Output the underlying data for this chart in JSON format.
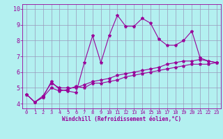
{
  "xlabel": "Windchill (Refroidissement éolien,°C)",
  "background_color": "#b3f0f0",
  "line_color": "#990099",
  "grid_color": "#9999bb",
  "x_ticks": [
    0,
    1,
    2,
    3,
    4,
    5,
    6,
    7,
    8,
    9,
    10,
    11,
    12,
    13,
    14,
    15,
    16,
    17,
    18,
    19,
    20,
    21,
    22,
    23
  ],
  "y_ticks": [
    4,
    5,
    6,
    7,
    8,
    9,
    10
  ],
  "xlim": [
    -0.5,
    23.5
  ],
  "ylim": [
    3.7,
    10.3
  ],
  "series1_x": [
    0,
    1,
    2,
    3,
    4,
    5,
    6,
    7,
    8,
    9,
    10,
    11,
    12,
    13,
    14,
    15,
    16,
    17,
    18,
    19,
    20,
    21,
    22,
    23
  ],
  "series1_y": [
    4.6,
    4.1,
    4.4,
    5.4,
    4.9,
    4.8,
    4.7,
    6.6,
    8.3,
    6.6,
    8.3,
    9.6,
    8.9,
    8.9,
    9.4,
    9.1,
    8.1,
    7.7,
    7.7,
    8.0,
    8.6,
    6.9,
    6.7,
    6.6
  ],
  "series2_x": [
    0,
    1,
    2,
    3,
    4,
    5,
    6,
    7,
    8,
    9,
    10,
    11,
    12,
    13,
    14,
    15,
    16,
    17,
    18,
    19,
    20,
    21,
    22,
    23
  ],
  "series2_y": [
    4.6,
    4.1,
    4.4,
    5.0,
    4.8,
    4.9,
    5.1,
    5.0,
    5.3,
    5.3,
    5.4,
    5.5,
    5.7,
    5.8,
    5.9,
    6.0,
    6.1,
    6.2,
    6.3,
    6.4,
    6.5,
    6.5,
    6.5,
    6.6
  ],
  "series3_x": [
    0,
    1,
    2,
    3,
    4,
    5,
    6,
    7,
    8,
    9,
    10,
    11,
    12,
    13,
    14,
    15,
    16,
    17,
    18,
    19,
    20,
    21,
    22,
    23
  ],
  "series3_y": [
    4.6,
    4.1,
    4.5,
    5.3,
    5.0,
    5.0,
    5.0,
    5.2,
    5.4,
    5.5,
    5.6,
    5.8,
    5.9,
    6.0,
    6.1,
    6.2,
    6.3,
    6.5,
    6.6,
    6.7,
    6.7,
    6.8,
    6.7,
    6.6
  ],
  "marker_size": 3,
  "linewidth": 0.8,
  "tick_fontsize_x": 5,
  "tick_fontsize_y": 6,
  "xlabel_fontsize": 5.5
}
